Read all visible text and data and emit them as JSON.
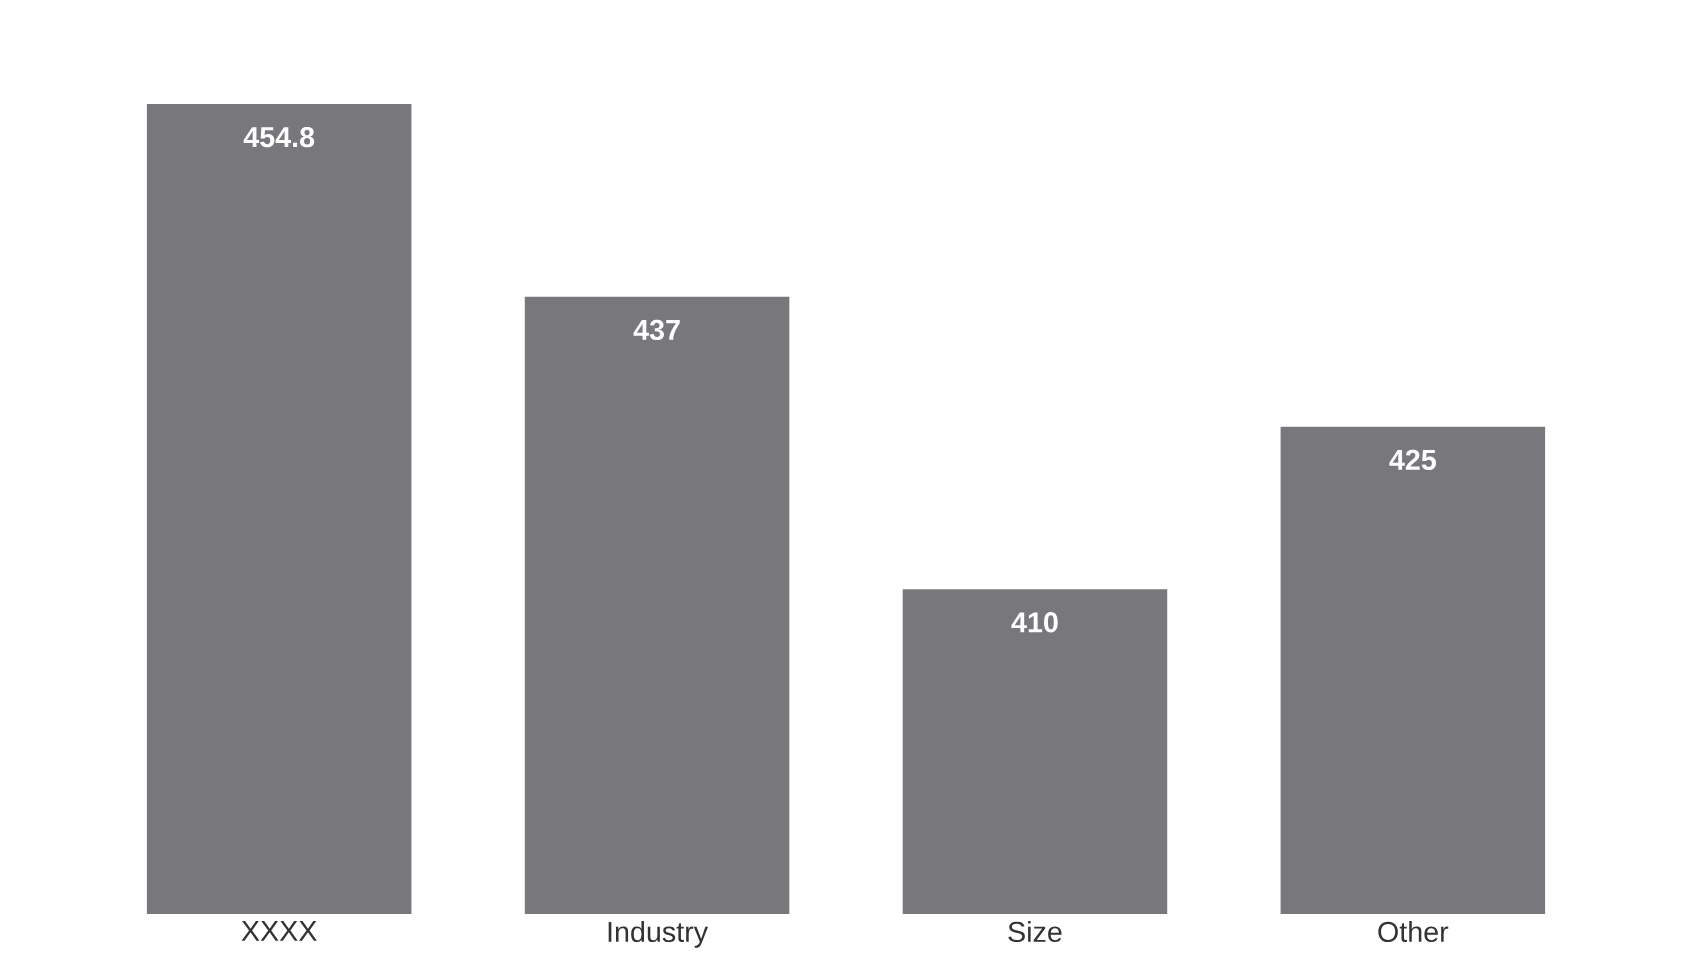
{
  "chart_data": {
    "type": "bar",
    "categories": [
      "XXXX",
      "Industry",
      "Size",
      "Other"
    ],
    "values": [
      454.8,
      437,
      410,
      425
    ],
    "color": "#78787c",
    "ylim": [
      380,
      454.8
    ],
    "data_labels": true
  }
}
